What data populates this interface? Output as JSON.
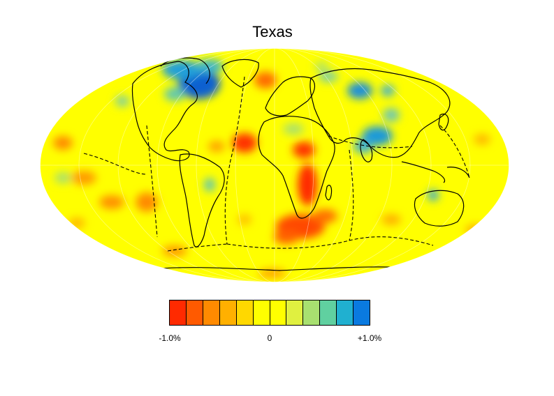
{
  "title": "Texas",
  "projection": "mollweide",
  "background_color": "#ffff00",
  "colorbar": {
    "min_label": "-1.0%",
    "mid_label": "0",
    "max_label": "+1.0%",
    "range": [
      -1.0,
      1.0
    ],
    "unit": "%",
    "colors": [
      "#ff2a00",
      "#ff5a00",
      "#ff8a00",
      "#ffb000",
      "#ffd800",
      "#ffff00",
      "#ffff00",
      "#e0f040",
      "#a8e070",
      "#60d0a0",
      "#20b0d0",
      "#0a7ae0"
    ]
  },
  "anomalies": [
    {
      "region": "north-atlantic-canada",
      "value": 0.9,
      "color": "#0a7ae0"
    },
    {
      "region": "central-asia",
      "value": 0.7,
      "color": "#1aa0e0"
    },
    {
      "region": "east-asia",
      "value": 0.6,
      "color": "#40b8d0"
    },
    {
      "region": "west-africa",
      "value": -0.9,
      "color": "#ff2a00"
    },
    {
      "region": "east-africa",
      "value": -0.9,
      "color": "#ff2a00"
    },
    {
      "region": "south-atlantic",
      "value": -0.8,
      "color": "#ff4000"
    },
    {
      "region": "southeast-pacific",
      "value": -0.6,
      "color": "#ff7a00"
    },
    {
      "region": "central-pacific",
      "value": -0.5,
      "color": "#ff9000"
    },
    {
      "region": "north-america-west",
      "value": 0.4,
      "color": "#80d090"
    }
  ]
}
